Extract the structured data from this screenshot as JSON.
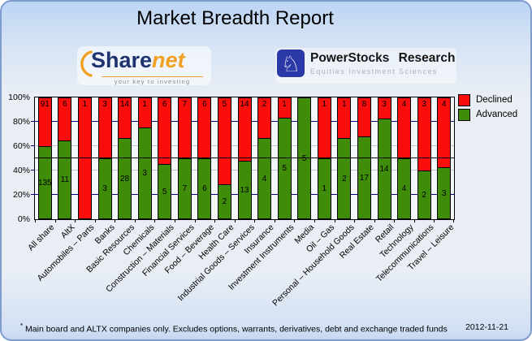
{
  "header": {
    "title": "Market Breadth Report",
    "sharenet": {
      "word_share": "Share",
      "word_net": "net",
      "tagline": "your key to investing",
      "brand_navy": "#1f336f",
      "brand_orange": "#f0a124"
    },
    "powerstocks": {
      "name": "PowerStocks  Research",
      "tagline": "Equities Investment Sciences",
      "knight_glyph": "♘",
      "badge_color": "#2b38a7"
    }
  },
  "chart_data": {
    "type": "bar",
    "stacked": true,
    "stacking": "percent",
    "title": "Market Breadth Report",
    "categories": [
      "All share",
      "AltX",
      "Automobiles – Parts",
      "Banks",
      "Basic Resources",
      "Chemicals",
      "Construction – Materials",
      "Financial Services",
      "Food – Beverage",
      "Health Care",
      "Industrial Goods – Services",
      "Insurance",
      "Investment Instruments",
      "Media",
      "Oil – Gas",
      "Personal – Household Goods",
      "Real Estate",
      "Retail",
      "Technology",
      "Telecommunications",
      "Travel – Leisure"
    ],
    "series": [
      {
        "name": "Declined",
        "color": "#fb0d0c",
        "values": [
          91,
          6,
          1,
          3,
          14,
          1,
          6,
          7,
          6,
          5,
          14,
          2,
          1,
          0,
          1,
          1,
          8,
          3,
          4,
          3,
          4
        ]
      },
      {
        "name": "Advanced",
        "color": "#3f8c09",
        "values": [
          135,
          11,
          0,
          3,
          28,
          3,
          5,
          7,
          6,
          2,
          13,
          4,
          5,
          5,
          1,
          2,
          17,
          14,
          4,
          2,
          3
        ]
      }
    ],
    "ylim": [
      0,
      100
    ],
    "y_ticks": [
      {
        "label": "0%",
        "pct": 0
      },
      {
        "label": "20%",
        "pct": 20
      },
      {
        "label": "40%",
        "pct": 40
      },
      {
        "label": "60%",
        "pct": 60
      },
      {
        "label": "80%",
        "pct": 80
      },
      {
        "label": "100%",
        "pct": 100
      }
    ],
    "gridlines": [
      {
        "pct": 20,
        "color": "#000080"
      },
      {
        "pct": 40,
        "color": "#c4c4c4"
      },
      {
        "pct": 50,
        "color": "#000000"
      },
      {
        "pct": 60,
        "color": "#c4c4c4"
      },
      {
        "pct": 80,
        "color": "#000080"
      }
    ],
    "legend_position": "right-top",
    "value_labels": "shown inside segments; red top-aligned, green centered; zero values hidden"
  },
  "footer": {
    "marker": "*",
    "note": "Main board and ALTX companies only. Excludes options, warrants, derivatives, debt and exchange traded funds",
    "date": "2012-11-21"
  }
}
